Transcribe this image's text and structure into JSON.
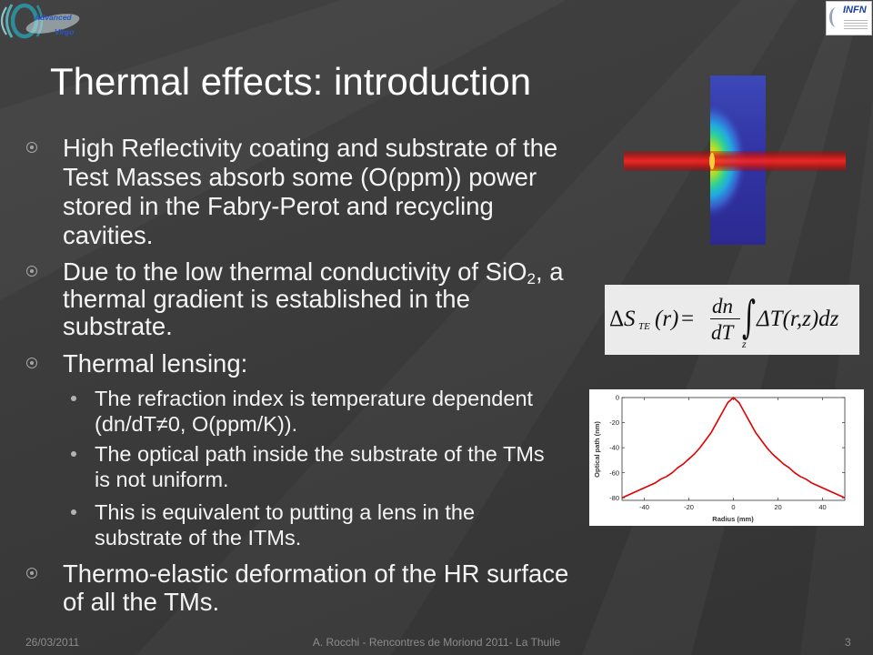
{
  "theme": {
    "background": "#3b3b3b",
    "title_color": "#ffffff",
    "text_color": "#f4f4f4",
    "bullet_icon_color": "#a6a6a6",
    "footer_color": "#8c8c8c",
    "curve_color": "#e00000",
    "formula_background": "#ebebeb"
  },
  "logos": {
    "left": {
      "icon": "advanced-virgo-logo",
      "text_1": "Advanced",
      "text_2": "Virgo"
    },
    "right": {
      "icon": "infn-logo",
      "text": "INFN"
    }
  },
  "slide": {
    "title": "Thermal effects: introduction",
    "bullet_icon": "circled-dot-icon",
    "sub_bullet_icon": "filled-circle-icon",
    "bullets": [
      {
        "lines": [
          "High Reflectivity coating and substrate of the",
          "Test Masses absorb some (O(ppm)) power",
          "stored in the Fabry-Perot and recycling",
          "cavities."
        ]
      },
      {
        "first_line": {
          "before": "Due to the low thermal conductivity of SiO",
          "subscript": "2",
          "after": ", a"
        },
        "lines": [
          "thermal gradient is established in the",
          "substrate."
        ]
      },
      {
        "lines": [
          "Thermal lensing:"
        ],
        "sub_bullets": [
          {
            "lines": [
              "The refraction index is temperature dependent",
              "(dn/dT≠0, O(ppm/K))."
            ]
          },
          {
            "lines": [
              "The optical path inside the substrate of the TMs",
              "is not uniform."
            ]
          },
          {
            "lines": [
              "This is equivalent to putting a lens in the",
              "substrate of the ITMs."
            ]
          }
        ]
      },
      {
        "lines": [
          "Thermo-elastic deformation of the HR surface",
          "of all the TMs."
        ]
      }
    ]
  },
  "figures": {
    "thermal_map_icon": "temperature-map-image",
    "beam_icon": "laser-beam-image"
  },
  "formula": {
    "delta": "Δ",
    "lhs_var": "S",
    "lhs_sub": "TE",
    "lhs_arg": "(r)",
    "equals": "=",
    "frac_num": "dn",
    "frac_den": "dT",
    "integral": "∫",
    "integral_lower": "z",
    "integrand": "ΔT(r,z)dz"
  },
  "chart_data": {
    "type": "line",
    "title": "",
    "xlabel": "Radius (mm)",
    "ylabel": "Optical path (nm)",
    "xlim": [
      -50,
      50
    ],
    "ylim": [
      -82,
      0
    ],
    "xticks": [
      -40,
      -20,
      0,
      20,
      40
    ],
    "yticks": [
      0,
      -20,
      -40,
      -60,
      -80
    ],
    "grid": false,
    "legend": "none",
    "x": [
      -50,
      -47.5,
      -45,
      -42.5,
      -40,
      -37.5,
      -35,
      -32.5,
      -30,
      -27.5,
      -25,
      -22.5,
      -20,
      -17.5,
      -15,
      -12.5,
      -10,
      -7.5,
      -5,
      -2.5,
      0,
      2.5,
      5,
      7.5,
      10,
      12.5,
      15,
      17.5,
      20,
      22.5,
      25,
      27.5,
      30,
      32.5,
      35,
      37.5,
      40,
      42.5,
      45,
      47.5,
      50
    ],
    "series": [
      {
        "color": "#e00000",
        "values": [
          -80,
          -78,
          -76,
          -74,
          -72,
          -70,
          -68,
          -65,
          -63,
          -60,
          -56,
          -53,
          -49,
          -45,
          -40,
          -34,
          -28,
          -20,
          -12,
          -4,
          0,
          -4,
          -12,
          -20,
          -28,
          -34,
          -40,
          -45,
          -49,
          -53,
          -56,
          -60,
          -63,
          -65,
          -68,
          -70,
          -72,
          -74,
          -76,
          -78,
          -80
        ]
      }
    ]
  },
  "footer": {
    "date": "26/03/2011",
    "center": "A. Rocchi - Rencontres de Moriond 2011- La Thuile",
    "page": "3"
  }
}
